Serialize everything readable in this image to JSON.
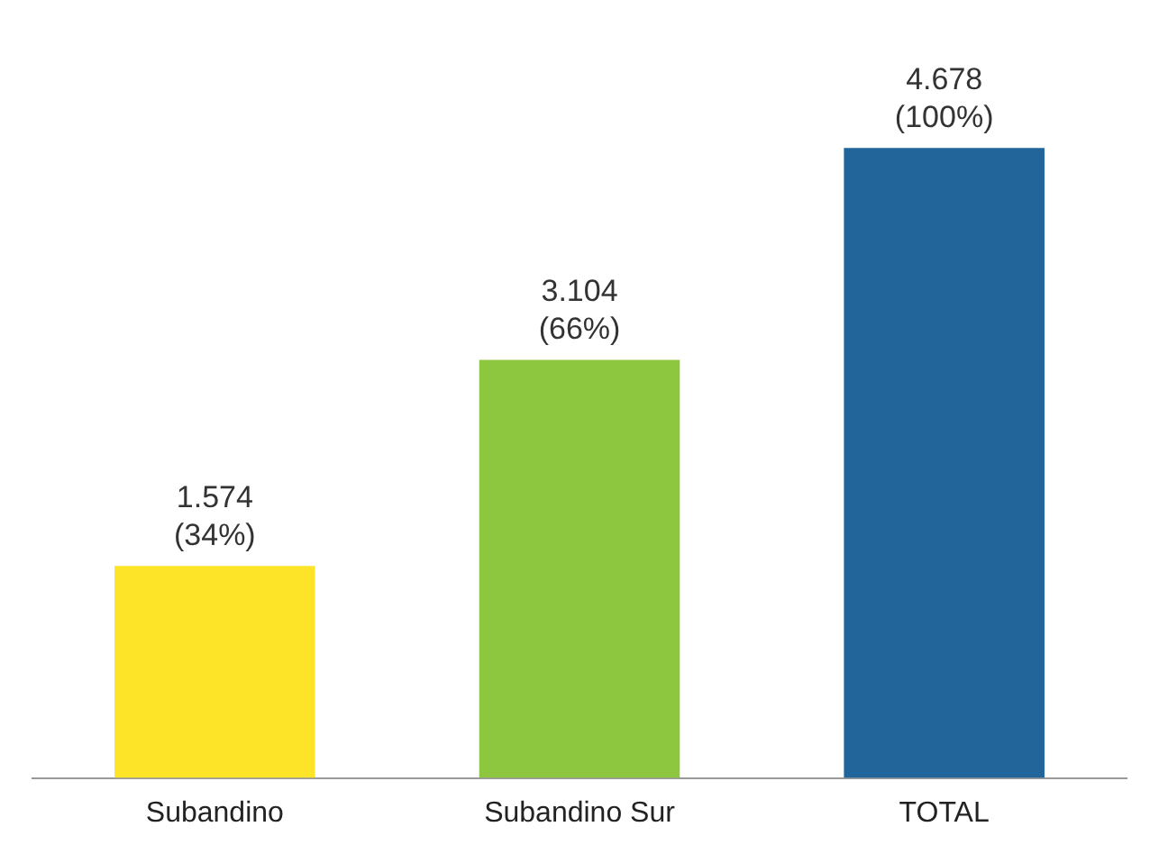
{
  "chart_data": {
    "type": "bar",
    "categories": [
      "Subandino",
      "Subandino Sur",
      "TOTAL"
    ],
    "values": [
      1574,
      3104,
      4678
    ],
    "colors": [
      "#fde428",
      "#8dc63f",
      "#22659a"
    ],
    "value_labels": [
      "1.574\n(34%)",
      "3.104\n(66%)",
      "4.678\n(100%)"
    ],
    "grid": false,
    "legend": false
  }
}
